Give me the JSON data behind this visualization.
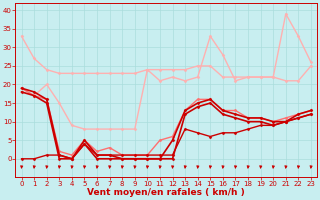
{
  "x": [
    0,
    1,
    2,
    3,
    4,
    5,
    6,
    7,
    8,
    9,
    10,
    11,
    12,
    13,
    14,
    15,
    16,
    17,
    18,
    19,
    20,
    21,
    22,
    23
  ],
  "series": [
    {
      "color": "#FFB0B0",
      "lw": 1.0,
      "marker": "D",
      "markersize": 1.5,
      "y": [
        33,
        27,
        24,
        23,
        23,
        23,
        23,
        23,
        23,
        23,
        24,
        24,
        24,
        24,
        25,
        25,
        22,
        22,
        22,
        22,
        22,
        21,
        21,
        25
      ]
    },
    {
      "color": "#FFB0B0",
      "lw": 1.0,
      "marker": "D",
      "markersize": 1.5,
      "y": [
        19,
        17,
        20,
        15,
        9,
        8,
        8,
        8,
        8,
        8,
        24,
        21,
        22,
        21,
        22,
        33,
        28,
        21,
        22,
        22,
        22,
        39,
        33,
        26
      ]
    },
    {
      "color": "#FF7070",
      "lw": 1.0,
      "marker": "D",
      "markersize": 1.5,
      "y": [
        19,
        17,
        16,
        2,
        1,
        5,
        2,
        3,
        1,
        1,
        1,
        5,
        6,
        13,
        16,
        16,
        13,
        13,
        11,
        11,
        10,
        11,
        12,
        13
      ]
    },
    {
      "color": "#CC0000",
      "lw": 1.2,
      "marker": "D",
      "markersize": 1.5,
      "y": [
        19,
        18,
        16,
        1,
        0,
        5,
        1,
        1,
        0,
        0,
        0,
        0,
        5,
        13,
        15,
        16,
        13,
        12,
        11,
        11,
        10,
        10,
        12,
        13
      ]
    },
    {
      "color": "#CC0000",
      "lw": 1.2,
      "marker": "D",
      "markersize": 1.5,
      "y": [
        18,
        17,
        15,
        0,
        0,
        4,
        0,
        0,
        0,
        0,
        0,
        0,
        0,
        12,
        14,
        15,
        12,
        11,
        10,
        10,
        9,
        10,
        11,
        12
      ]
    },
    {
      "color": "#CC0000",
      "lw": 1.0,
      "marker": "D",
      "markersize": 1.5,
      "y": [
        0,
        0,
        1,
        1,
        0,
        4,
        1,
        1,
        1,
        1,
        1,
        1,
        1,
        8,
        7,
        6,
        7,
        7,
        8,
        9,
        9,
        10,
        11,
        12
      ]
    }
  ],
  "wind_arrows": [
    0,
    1,
    2,
    3,
    4,
    5,
    6,
    7,
    8,
    9,
    10,
    11,
    12,
    13,
    14,
    15,
    16,
    17,
    18,
    19,
    20,
    21,
    22,
    23
  ],
  "xlabel": "Vent moyen/en rafales ( km/h )",
  "yticks": [
    0,
    5,
    10,
    15,
    20,
    25,
    30,
    35,
    40
  ],
  "xlim": [
    -0.5,
    23.5
  ],
  "ylim": [
    -5,
    42
  ],
  "background_color": "#C8EEF0",
  "grid_color": "#AADDDD",
  "tick_color": "#CC0000",
  "label_color": "#CC0000",
  "xlabel_fontsize": 6.5,
  "tick_fontsize": 5
}
